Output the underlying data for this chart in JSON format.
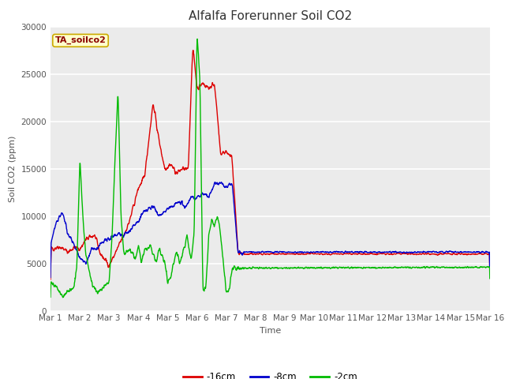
{
  "title": "Alfalfa Forerunner Soil CO2",
  "ylabel": "Soil CO2 (ppm)",
  "xlabel": "Time",
  "legend_label": "TA_soilco2",
  "ylim": [
    0,
    30000
  ],
  "yticks": [
    0,
    5000,
    10000,
    15000,
    20000,
    25000,
    30000
  ],
  "xtick_labels": [
    "Mar 1",
    "Mar 2",
    "Mar 3",
    "Mar 4",
    "Mar 5",
    "Mar 6",
    "Mar 7",
    "Mar 8",
    "Mar 9",
    "Mar 10",
    "Mar 11",
    "Mar 12",
    "Mar 13",
    "Mar 14",
    "Mar 15",
    "Mar 16"
  ],
  "series_labels": [
    "-16cm",
    "-8cm",
    "-2cm"
  ],
  "series_colors": [
    "#dd0000",
    "#0000cc",
    "#00bb00"
  ],
  "plot_bg_color": "#ebebeb",
  "fig_bg_color": "#ffffff",
  "grid_color": "#ffffff",
  "title_fontsize": 11,
  "axis_fontsize": 8,
  "tick_fontsize": 7.5,
  "linewidth": 1.0
}
